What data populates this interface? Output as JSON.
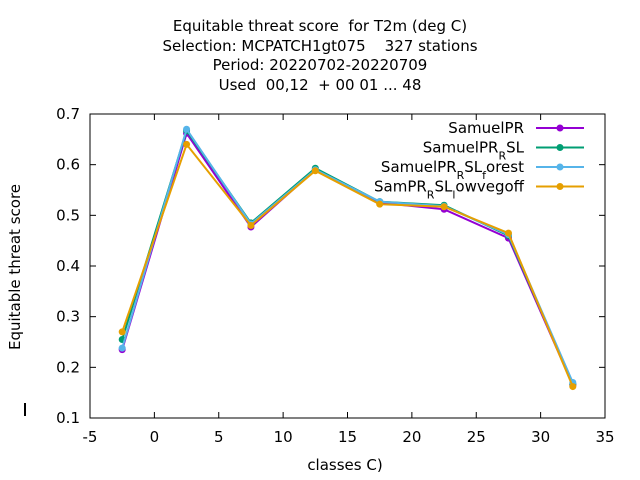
{
  "chart_data": {
    "type": "line",
    "title_lines": [
      "Equitable threat score  for T2m (deg C)",
      "Selection: MCPATCH1gt075    327 stations",
      "Period: 20220702-20220709",
      "Used  00,12  + 00 01 ... 48"
    ],
    "xlabel": "classes C)",
    "ylabel": "Equitable threat score",
    "xlim": [
      -5,
      35
    ],
    "ylim": [
      0.1,
      0.7
    ],
    "xticks": [
      -5,
      0,
      5,
      10,
      15,
      20,
      25,
      30,
      35
    ],
    "yticks": [
      0.1,
      0.2,
      0.3,
      0.4,
      0.5,
      0.6,
      0.7
    ],
    "ytick_labels": [
      "0.1",
      "0.2",
      "0.3",
      "0.4",
      "0.5",
      "0.6",
      "0.7"
    ],
    "legend_position": "top-right",
    "x": [
      -2.5,
      2.5,
      7.5,
      12.5,
      17.5,
      22.5,
      27.5,
      32.5
    ],
    "series": [
      {
        "name_parts": [
          [
            "SamuelPR",
            ""
          ]
        ],
        "color": "#9400d3",
        "values": [
          0.235,
          0.662,
          0.477,
          0.59,
          0.525,
          0.512,
          0.455,
          0.165
        ]
      },
      {
        "name_parts": [
          [
            "SamuelPR",
            ""
          ],
          [
            "R",
            "sub"
          ],
          [
            "SL",
            ""
          ]
        ],
        "color": "#009e73",
        "values": [
          0.255,
          0.667,
          0.485,
          0.593,
          0.527,
          0.52,
          0.46,
          0.167
        ]
      },
      {
        "name_parts": [
          [
            "SamuelPR",
            ""
          ],
          [
            "R",
            "sub"
          ],
          [
            "SL",
            ""
          ],
          [
            "f",
            "sub"
          ],
          [
            "orest",
            ""
          ]
        ],
        "color": "#56b4e9",
        "values": [
          0.238,
          0.67,
          0.483,
          0.59,
          0.527,
          0.518,
          0.462,
          0.17
        ]
      },
      {
        "name_parts": [
          [
            "SamPR",
            ""
          ],
          [
            "R",
            "sub"
          ],
          [
            "SL",
            ""
          ],
          [
            "l",
            "sub"
          ],
          [
            "owvegoff",
            ""
          ]
        ],
        "color": "#e69f00",
        "values": [
          0.27,
          0.64,
          0.48,
          0.588,
          0.522,
          0.517,
          0.465,
          0.162
        ]
      }
    ]
  }
}
